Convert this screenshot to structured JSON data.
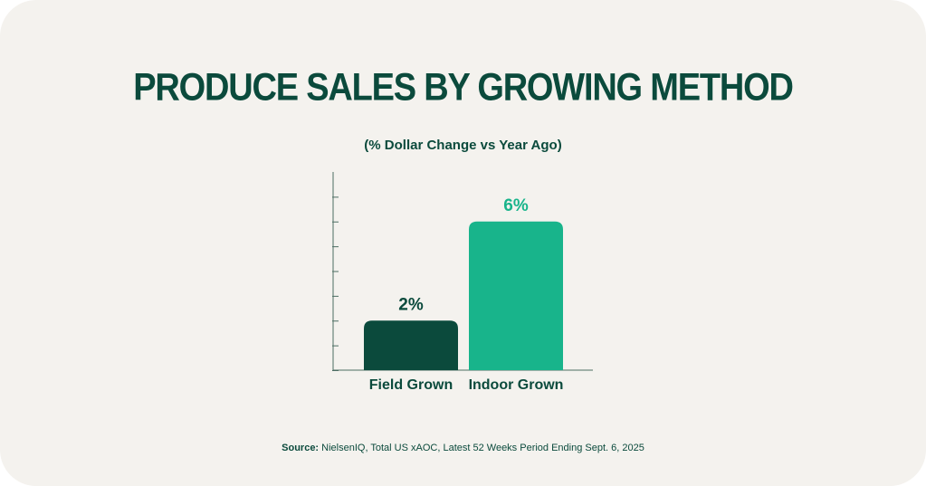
{
  "colors": {
    "background": "#f4f2ee",
    "title": "#0b4a3c",
    "axis": "#4d6e63",
    "field_bar": "#0b4a3c",
    "indoor_bar": "#18b48b"
  },
  "chart_data": {
    "type": "bar",
    "title": "PRODUCE SALES BY GROWING METHOD",
    "subtitle": "(% Dollar Change vs Year Ago)",
    "categories": [
      "Field Grown",
      "Indoor Grown"
    ],
    "values": [
      2,
      6
    ],
    "data_labels": [
      "2%",
      "6%"
    ],
    "bar_colors": [
      "#0b4a3c",
      "#18b48b"
    ],
    "label_colors": [
      "#0b4a3c",
      "#18b48b"
    ],
    "xlabel": "",
    "ylabel": "",
    "ylim": [
      0,
      8
    ],
    "y_ticks": 8,
    "grid": false,
    "legend": "none"
  },
  "source": {
    "label": "Source:",
    "text": " NielsenIQ, Total US xAOC, Latest 52 Weeks Period Ending Sept. 6, 2025"
  }
}
